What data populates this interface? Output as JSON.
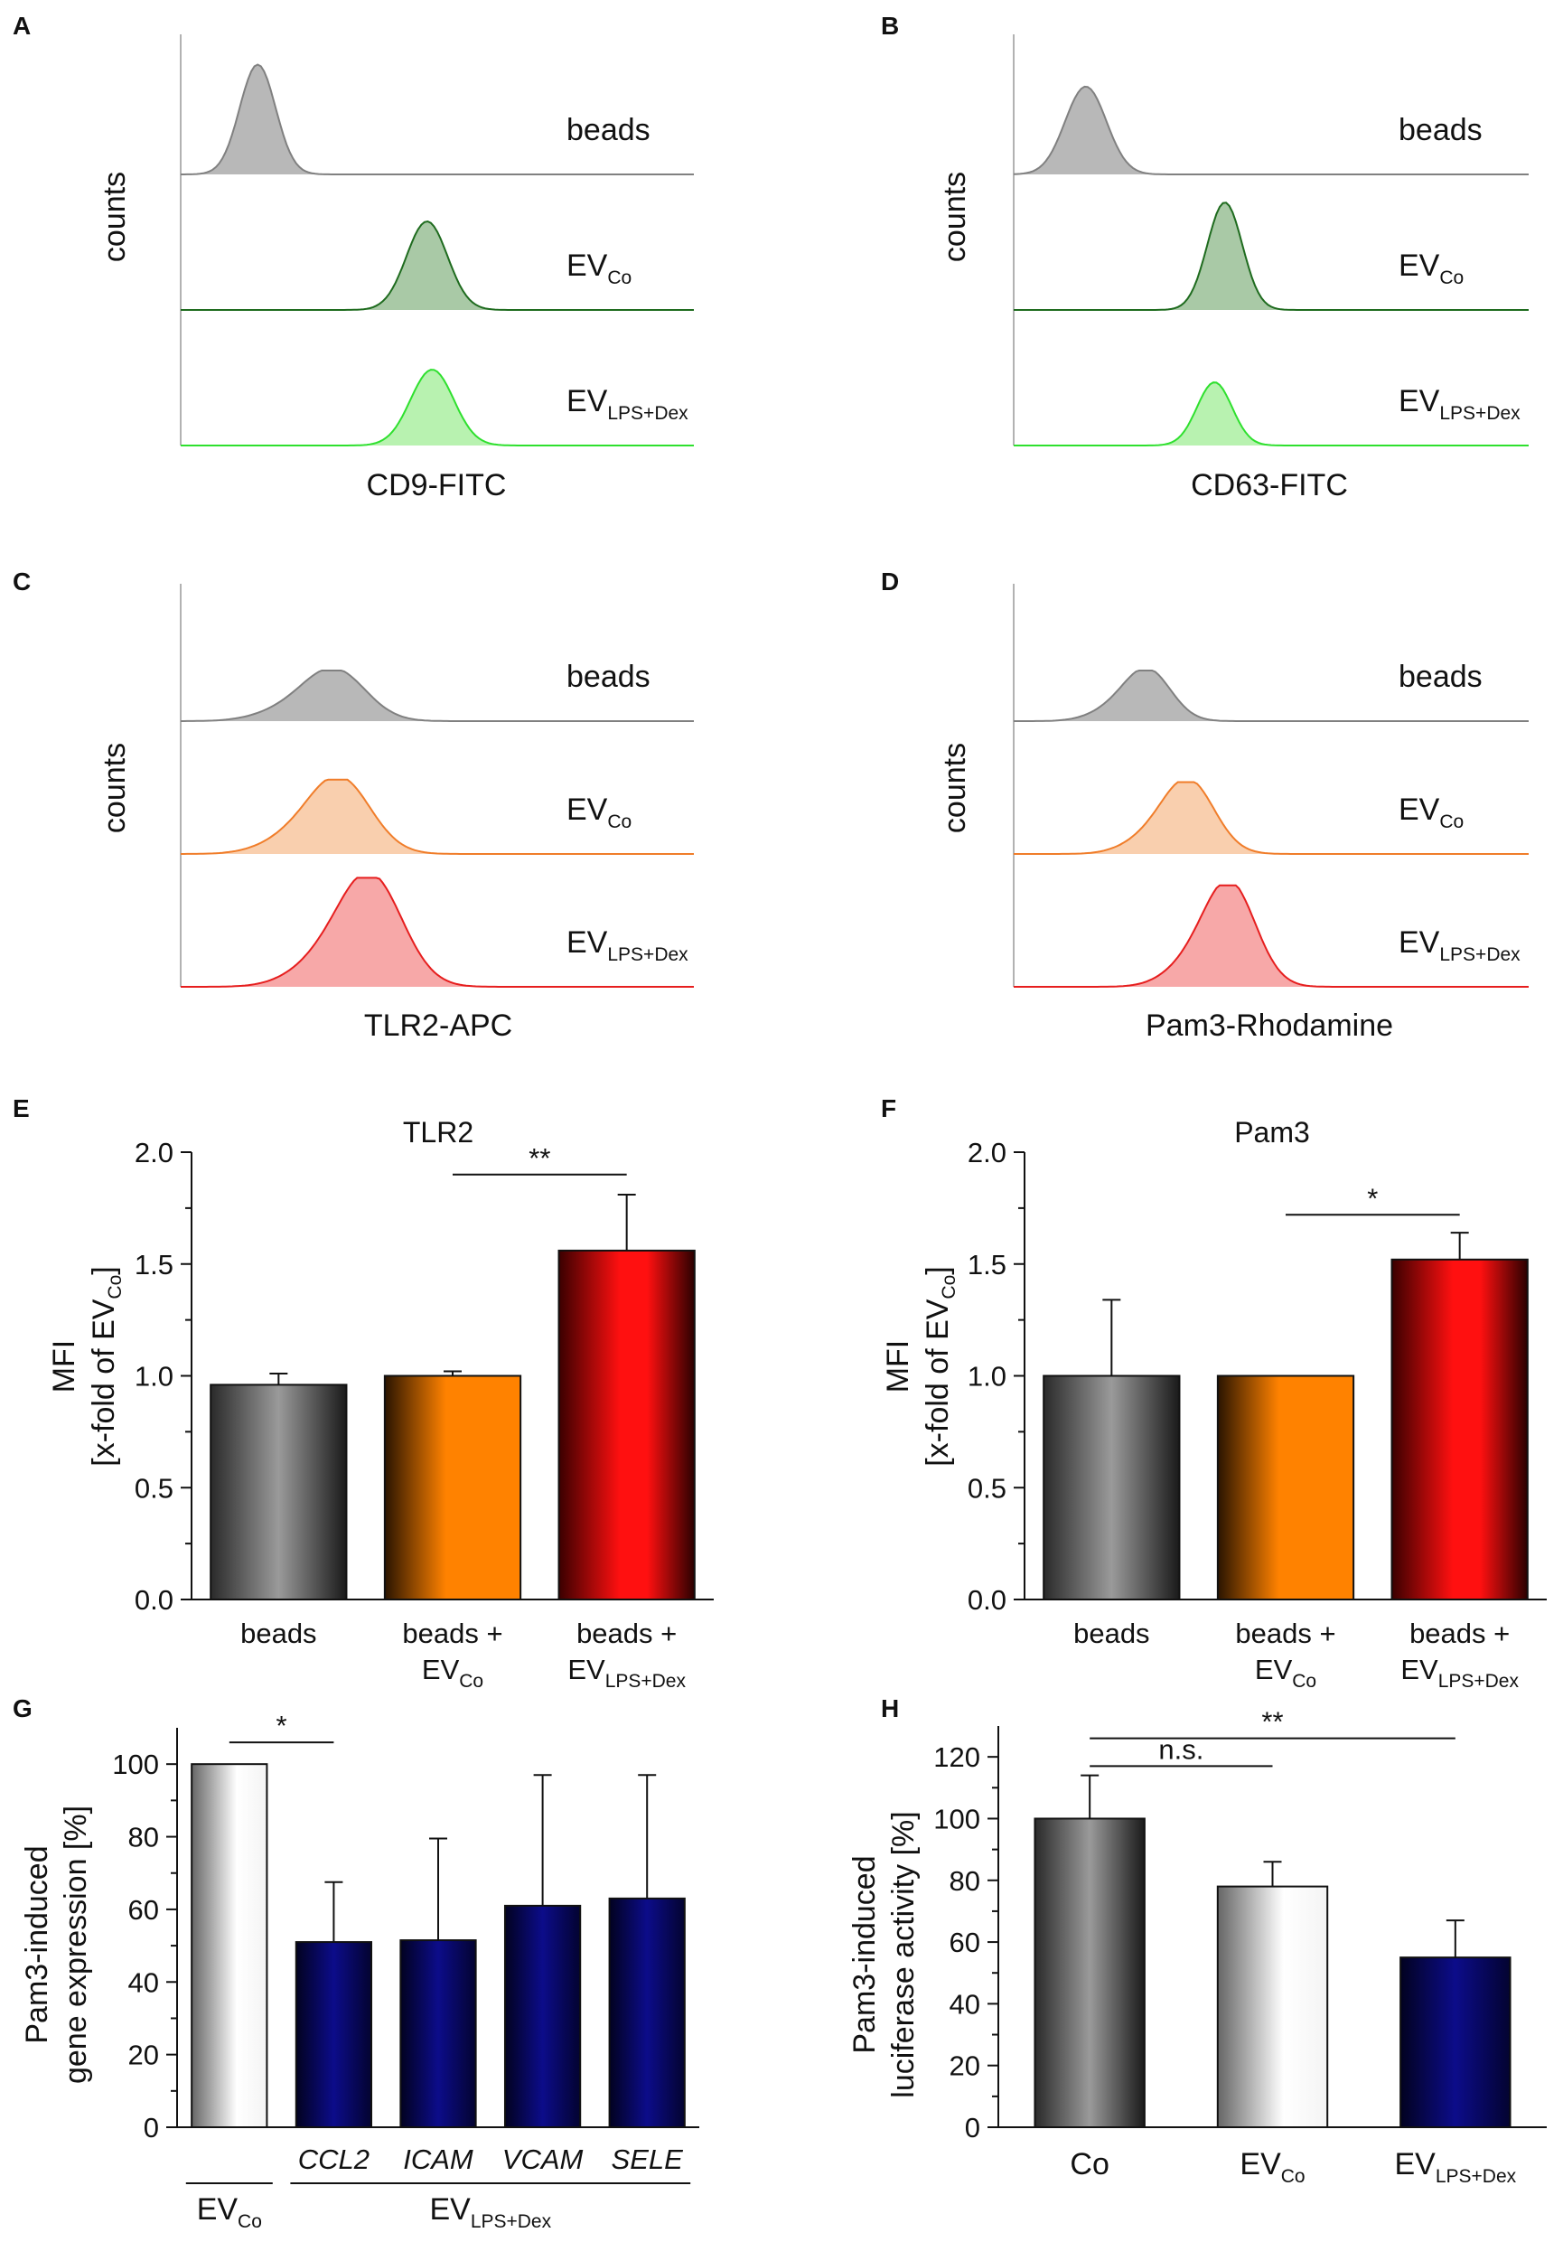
{
  "chart_data": [
    {
      "panel": "A",
      "type": "histogram",
      "ylabel": "counts",
      "xlabel": "CD9-FITC",
      "series": [
        {
          "name": "beads",
          "name_sub": "",
          "peak": 0.15,
          "width": 0.035,
          "height": 0.85,
          "color": "#808080",
          "fill": "#b8b8b8"
        },
        {
          "name": "EV",
          "name_sub": "Co",
          "peak": 0.48,
          "width": 0.04,
          "height": 0.7,
          "color": "#1e6b1e",
          "fill": "#a9c9a6"
        },
        {
          "name": "EV",
          "name_sub": "LPS+Dex",
          "peak": 0.49,
          "width": 0.042,
          "height": 0.6,
          "color": "#2ee02e",
          "fill": "#b8f2b0"
        }
      ]
    },
    {
      "panel": "B",
      "type": "histogram",
      "ylabel": "counts",
      "xlabel": "CD63-FITC",
      "series": [
        {
          "name": "beads",
          "name_sub": "",
          "peak": 0.14,
          "width": 0.04,
          "height": 0.68,
          "color": "#808080",
          "fill": "#b8b8b8"
        },
        {
          "name": "EV",
          "name_sub": "Co",
          "peak": 0.41,
          "width": 0.034,
          "height": 0.85,
          "color": "#1e6b1e",
          "fill": "#a9c9a6"
        },
        {
          "name": "EV",
          "name_sub": "LPS+Dex",
          "peak": 0.39,
          "width": 0.034,
          "height": 0.5,
          "color": "#2ee02e",
          "fill": "#b8f2b0"
        }
      ]
    },
    {
      "panel": "C",
      "type": "histogram",
      "ylabel": "counts",
      "xlabel": "TLR2-APC",
      "series": [
        {
          "name": "beads",
          "name_sub": "",
          "peak": 0.3,
          "width": 0.06,
          "height": 0.4,
          "color": "#808080",
          "fill": "#b8b8b8"
        },
        {
          "name": "EV",
          "name_sub": "Co",
          "peak": 0.31,
          "width": 0.06,
          "height": 0.6,
          "color": "#f07d2a",
          "fill": "#f9cfae"
        },
        {
          "name": "EV",
          "name_sub": "LPS+Dex",
          "peak": 0.37,
          "width": 0.062,
          "height": 0.88,
          "color": "#e61e1e",
          "fill": "#f7a8a8"
        }
      ]
    },
    {
      "panel": "D",
      "type": "histogram",
      "ylabel": "counts",
      "xlabel": "Pam3-Rhodamine",
      "series": [
        {
          "name": "beads",
          "name_sub": "",
          "peak": 0.26,
          "width": 0.045,
          "height": 0.4,
          "color": "#808080",
          "fill": "#b8b8b8"
        },
        {
          "name": "EV",
          "name_sub": "Co",
          "peak": 0.34,
          "width": 0.05,
          "height": 0.58,
          "color": "#f07d2a",
          "fill": "#f9cfae"
        },
        {
          "name": "EV",
          "name_sub": "LPS+Dex",
          "peak": 0.42,
          "width": 0.05,
          "height": 0.82,
          "color": "#e61e1e",
          "fill": "#f7a8a8"
        }
      ]
    },
    {
      "panel": "E",
      "type": "bar",
      "title": "TLR2",
      "ylabel_line1": "MFI",
      "ylabel_line2": "[x-fold of EV",
      "ylabel_sub": "Co",
      "ylabel_end": "]",
      "ylim": [
        0,
        2.0
      ],
      "yticks": [
        "0.0",
        "0.5",
        "1.0",
        "1.5",
        "2.0"
      ],
      "categories": [
        {
          "line1": "beads",
          "line2": "",
          "line2_sub": ""
        },
        {
          "line1": "beads +",
          "line2": "EV",
          "line2_sub": "Co"
        },
        {
          "line1": "beads +",
          "line2": "EV",
          "line2_sub": "LPS+Dex"
        }
      ],
      "values": [
        0.96,
        1.0,
        1.56
      ],
      "errors": [
        0.05,
        0.02,
        0.25
      ],
      "colors": [
        "gray",
        "orange",
        "red"
      ],
      "significance": [
        {
          "from": 1,
          "to": 2,
          "label": "**",
          "y": 1.9
        }
      ]
    },
    {
      "panel": "F",
      "type": "bar",
      "title": "Pam3",
      "ylabel_line1": "MFI",
      "ylabel_line2": "[x-fold of EV",
      "ylabel_sub": "Co",
      "ylabel_end": "]",
      "ylim": [
        0,
        2.0
      ],
      "yticks": [
        "0.0",
        "0.5",
        "1.0",
        "1.5",
        "2.0"
      ],
      "categories": [
        {
          "line1": "beads",
          "line2": "",
          "line2_sub": ""
        },
        {
          "line1": "beads +",
          "line2": "EV",
          "line2_sub": "Co"
        },
        {
          "line1": "beads +",
          "line2": "EV",
          "line2_sub": "LPS+Dex"
        }
      ],
      "values": [
        1.0,
        1.0,
        1.52
      ],
      "errors": [
        0.34,
        0.0,
        0.12
      ],
      "colors": [
        "gray",
        "orange",
        "red"
      ],
      "significance": [
        {
          "from": 1,
          "to": 2,
          "label": "*",
          "y": 1.72
        }
      ]
    },
    {
      "panel": "G",
      "type": "bar",
      "ylabel_line1": "Pam3-induced",
      "ylabel_line2": "gene expression [%]",
      "ylim": [
        0,
        110
      ],
      "yticks": [
        "0",
        "20",
        "40",
        "60",
        "80",
        "100"
      ],
      "categories": [
        "",
        "CCL2",
        "ICAM",
        "VCAM",
        "SELE"
      ],
      "group_labels": [
        {
          "text": "EV",
          "sub": "Co"
        },
        {
          "text": "EV",
          "sub": "LPS+Dex"
        }
      ],
      "values": [
        100,
        51,
        51.5,
        61,
        63
      ],
      "errors": [
        0,
        16.5,
        28,
        36,
        34
      ],
      "colors": [
        "white",
        "navy",
        "navy",
        "navy",
        "navy"
      ],
      "significance": [
        {
          "from": 0,
          "to": 1,
          "label": "*",
          "y": 106
        }
      ]
    },
    {
      "panel": "H",
      "type": "bar",
      "ylabel_line1": "Pam3-induced",
      "ylabel_line2": "luciferase  activity [%]",
      "ylim": [
        0,
        130
      ],
      "yticks": [
        "0",
        "20",
        "40",
        "60",
        "80",
        "100",
        "120"
      ],
      "categories": [
        {
          "text": "Co",
          "sub": ""
        },
        {
          "text": "EV",
          "sub": "Co"
        },
        {
          "text": "EV",
          "sub": "LPS+Dex"
        }
      ],
      "values": [
        100,
        78,
        55
      ],
      "errors": [
        14,
        8,
        12
      ],
      "colors": [
        "gray",
        "white",
        "navy"
      ],
      "significance": [
        {
          "from": 0,
          "to": 1,
          "label": "n.s.",
          "y": 117
        },
        {
          "from": 0,
          "to": 2,
          "label": "**",
          "y": 126
        }
      ]
    }
  ]
}
